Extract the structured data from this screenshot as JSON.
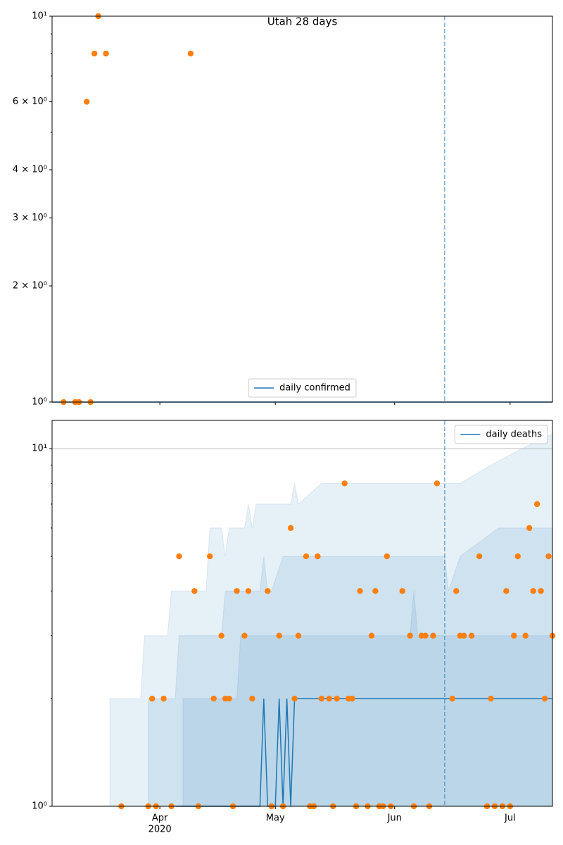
{
  "chart_data": [
    {
      "type": "line",
      "title": "Utah 28 days",
      "yscale": "log",
      "grid": false,
      "legend": "lower center",
      "xlim": [
        64,
        194
      ],
      "ylim": [
        1,
        10
      ],
      "yticks": [
        {
          "value": 1,
          "label": "10⁰"
        },
        {
          "value": 2,
          "label": "2 × 10⁰"
        },
        {
          "value": 3,
          "label": "3 × 10⁰"
        },
        {
          "value": 4,
          "label": "4 × 10⁰"
        },
        {
          "value": 6,
          "label": "6 × 10⁰"
        },
        {
          "value": 10,
          "label": "10¹"
        }
      ],
      "yminorticks": [
        5,
        7,
        8,
        9
      ],
      "vlines": [
        166
      ],
      "vline_color": "#1f77b4",
      "series": [
        {
          "name": "daily confirmed",
          "type": "line",
          "color": "#1f77b4",
          "x": [
            64,
            194
          ],
          "values": [
            1,
            1
          ]
        },
        {
          "type": "scatter",
          "color": "#ff7f0e",
          "x": [
            67,
            70,
            70,
            71,
            73,
            74,
            75,
            76,
            78,
            100
          ],
          "values": [
            1,
            1,
            1,
            1,
            6,
            1,
            8,
            10,
            8,
            8
          ]
        }
      ]
    },
    {
      "type": "line",
      "yscale": "log",
      "grid": true,
      "legend": "upper right",
      "xlim": [
        64,
        194
      ],
      "ylim": [
        1,
        12
      ],
      "xticks": [
        {
          "value": 92,
          "label": "Apr"
        },
        {
          "value": 122,
          "label": "May"
        },
        {
          "value": 153,
          "label": "Jun"
        },
        {
          "value": 183,
          "label": "Jul"
        }
      ],
      "x_year_label": "2020",
      "yticks": [
        {
          "value": 1,
          "label": "10⁰"
        },
        {
          "value": 10,
          "label": "10¹"
        }
      ],
      "yminorticks": [
        2,
        3,
        4,
        5,
        6,
        7,
        8,
        9
      ],
      "vlines": [
        166
      ],
      "vline_color": "#1f77b4",
      "bands": [
        {
          "color": "#1f77b4",
          "x": [
            79,
            87,
            88,
            94,
            95,
            104,
            105,
            108,
            109,
            110,
            114,
            115,
            116,
            117,
            126,
            127,
            128,
            134,
            164,
            170,
            178,
            186,
            194
          ],
          "upper": [
            2,
            2,
            3,
            3,
            4,
            4,
            6,
            6,
            5,
            6,
            6,
            7,
            6,
            7,
            7,
            8,
            7,
            8,
            8,
            8,
            9,
            10,
            11
          ]
        },
        {
          "color": "#1f77b4",
          "x": [
            89,
            96,
            97,
            108,
            109,
            118,
            119,
            120,
            121,
            124,
            125,
            166,
            167,
            170,
            180,
            194
          ],
          "upper": [
            2,
            2,
            3,
            3,
            4,
            4,
            5,
            4,
            4,
            5,
            5,
            5,
            4,
            5,
            6,
            6
          ]
        },
        {
          "color": "#1f77b4",
          "x": [
            98,
            112,
            113,
            157,
            158,
            159,
            194
          ],
          "upper": [
            2,
            2,
            3,
            3,
            4,
            3,
            3
          ]
        }
      ],
      "series": [
        {
          "name": "daily deaths",
          "type": "line",
          "color": "#1f77b4",
          "x": [
            96,
            118,
            119,
            120,
            122,
            123,
            124,
            125,
            126,
            127,
            194
          ],
          "values": [
            1,
            1,
            2,
            1,
            1,
            2,
            1,
            2,
            1,
            2,
            2
          ]
        },
        {
          "type": "scatter",
          "color": "#ff7f0e",
          "x": [
            82,
            89,
            91,
            95,
            102,
            111,
            121,
            124,
            131,
            132,
            137,
            143,
            146,
            149,
            150,
            152,
            158,
            162,
            177,
            179,
            181,
            183,
            90,
            93,
            106,
            109,
            110,
            116,
            127,
            134,
            136,
            138,
            141,
            142,
            168,
            178,
            192,
            108,
            114,
            123,
            128,
            147,
            157,
            160,
            161,
            163,
            170,
            171,
            173,
            184,
            187,
            194,
            101,
            112,
            115,
            120,
            144,
            148,
            155,
            169,
            182,
            189,
            191,
            97,
            105,
            130,
            133,
            151,
            175,
            185,
            193,
            126,
            188,
            190,
            140,
            164
          ],
          "values": [
            1,
            1,
            1,
            1,
            1,
            1,
            1,
            1,
            1,
            1,
            1,
            1,
            1,
            1,
            1,
            1,
            1,
            1,
            1,
            1,
            1,
            1,
            2,
            2,
            2,
            2,
            2,
            2,
            2,
            2,
            2,
            2,
            2,
            2,
            2,
            2,
            2,
            3,
            3,
            3,
            3,
            3,
            3,
            3,
            3,
            3,
            3,
            3,
            3,
            3,
            3,
            3,
            4,
            4,
            4,
            4,
            4,
            4,
            4,
            4,
            4,
            4,
            4,
            5,
            5,
            5,
            5,
            5,
            5,
            5,
            5,
            6,
            6,
            7,
            8,
            8
          ]
        }
      ]
    }
  ]
}
